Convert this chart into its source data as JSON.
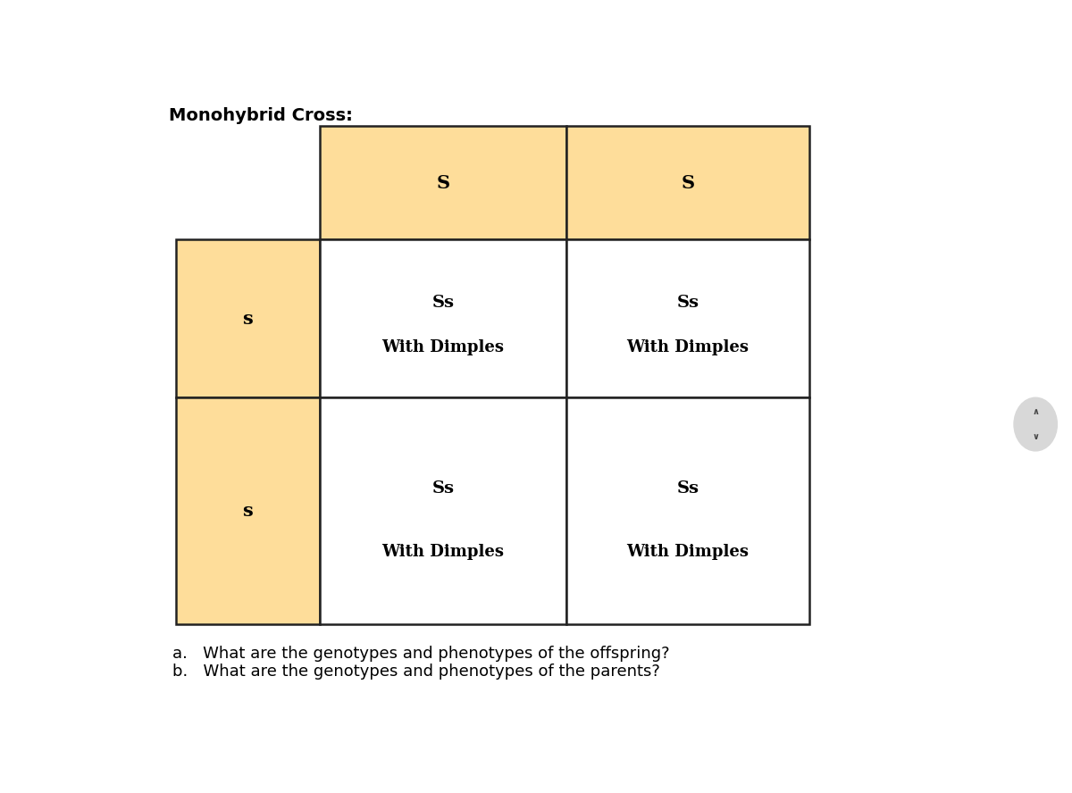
{
  "title": "Monohybrid Cross:",
  "title_fontsize": 14,
  "title_fontweight": "bold",
  "background_color": "#ffffff",
  "cell_color_header": "#FEDD9A",
  "cell_color_inner": "#ffffff",
  "grid_linecolor": "#222222",
  "grid_linewidth": 1.8,
  "col_headers": [
    "S",
    "S"
  ],
  "row_headers": [
    "s",
    "s"
  ],
  "inner_cells": [
    [
      "Ss",
      "With Dimples",
      "Ss",
      "With Dimples"
    ],
    [
      "Ss",
      "With Dimples",
      "Ss",
      "With Dimples"
    ]
  ],
  "genotype_fontsize": 14,
  "phenotype_fontsize": 13,
  "header_fontsize": 15,
  "question_a": "a.   What are the genotypes and phenotypes of the offspring?",
  "question_b": "b.   What are the genotypes and phenotypes of the parents?",
  "question_fontsize": 13
}
